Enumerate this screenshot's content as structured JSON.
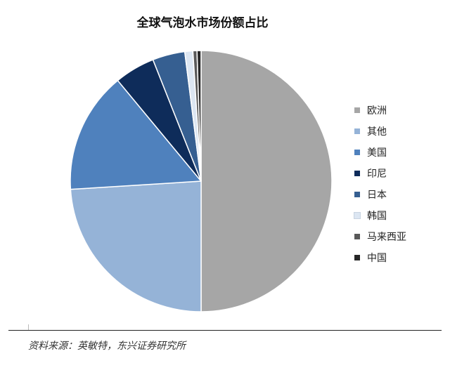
{
  "chart_data": {
    "type": "pie",
    "title": "全球气泡水市场份额占比",
    "slices": [
      {
        "label": "欧洲",
        "value": 50.0,
        "color": "#a6a6a6"
      },
      {
        "label": "其他",
        "value": 24.0,
        "color": "#95b3d7"
      },
      {
        "label": "美国",
        "value": 15.0,
        "color": "#4f81bd"
      },
      {
        "label": "印尼",
        "value": 5.0,
        "color": "#0e2c5a"
      },
      {
        "label": "日本",
        "value": 4.0,
        "color": "#365f91"
      },
      {
        "label": "韩国",
        "value": 1.0,
        "color": "#dce6f2"
      },
      {
        "label": "马来西亚",
        "value": 0.5,
        "color": "#595959"
      },
      {
        "label": "中国",
        "value": 0.5,
        "color": "#262626"
      }
    ],
    "start_direction": "top",
    "direction": "clockwise",
    "legend_position": "right"
  },
  "source_note": "资料来源：英敏特，东兴证券研究所"
}
